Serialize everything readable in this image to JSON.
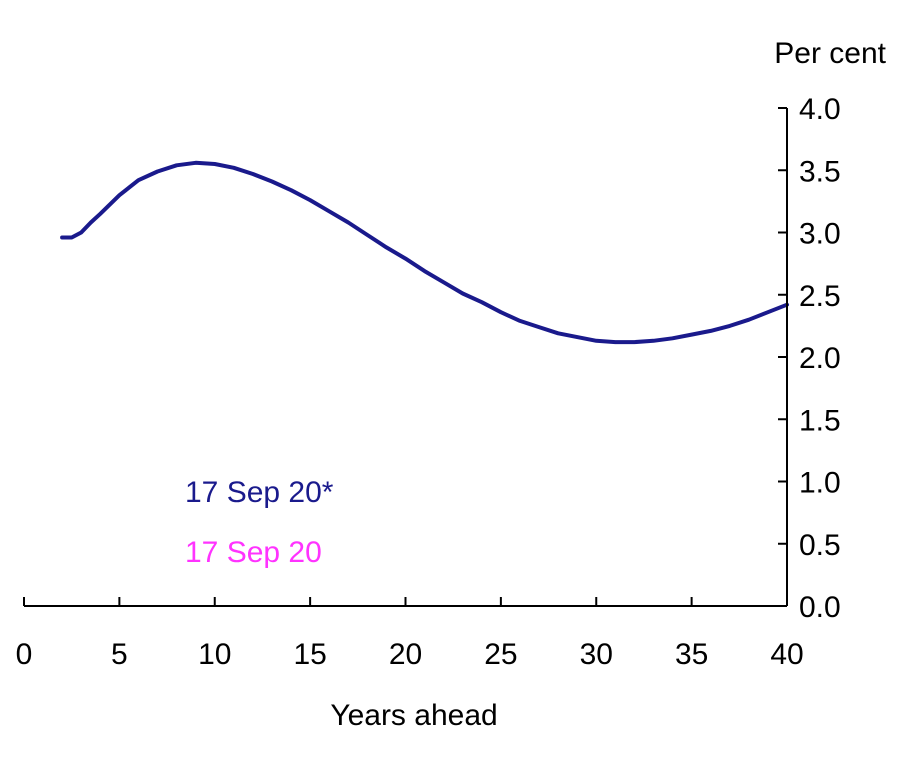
{
  "chart_data": {
    "type": "line",
    "title": "",
    "xlabel": "Years ahead",
    "ylabel": "Per cent",
    "xlim": [
      0,
      40
    ],
    "ylim": [
      0,
      4
    ],
    "x_ticks": [
      "0",
      "5",
      "10",
      "15",
      "20",
      "25",
      "30",
      "35",
      "40"
    ],
    "y_ticks": [
      "0.0",
      "0.5",
      "1.0",
      "1.5",
      "2.0",
      "2.5",
      "3.0",
      "3.5",
      "4.0"
    ],
    "grid": false,
    "legend_placement": "bottom-left",
    "series": [
      {
        "name": "17 Sep 20*",
        "color": "#1a1a8c",
        "x": [
          2,
          2.5,
          3,
          3.5,
          4,
          5,
          6,
          7,
          8,
          9,
          10,
          11,
          12,
          13,
          14,
          15,
          16,
          17,
          18,
          19,
          20,
          21,
          22,
          23,
          24,
          25,
          26,
          27,
          28,
          29,
          30,
          31,
          32,
          33,
          34,
          35,
          36,
          37,
          38,
          39,
          40
        ],
        "y": [
          2.96,
          2.96,
          3.0,
          3.08,
          3.15,
          3.3,
          3.42,
          3.49,
          3.54,
          3.56,
          3.55,
          3.52,
          3.47,
          3.41,
          3.34,
          3.26,
          3.17,
          3.08,
          2.98,
          2.88,
          2.79,
          2.69,
          2.6,
          2.51,
          2.44,
          2.36,
          2.29,
          2.24,
          2.19,
          2.16,
          2.13,
          2.12,
          2.12,
          2.13,
          2.15,
          2.18,
          2.21,
          2.25,
          2.3,
          2.36,
          2.42
        ]
      },
      {
        "name": "17 Sep 20",
        "color": "#ff33ff",
        "x": [],
        "y": []
      }
    ]
  }
}
